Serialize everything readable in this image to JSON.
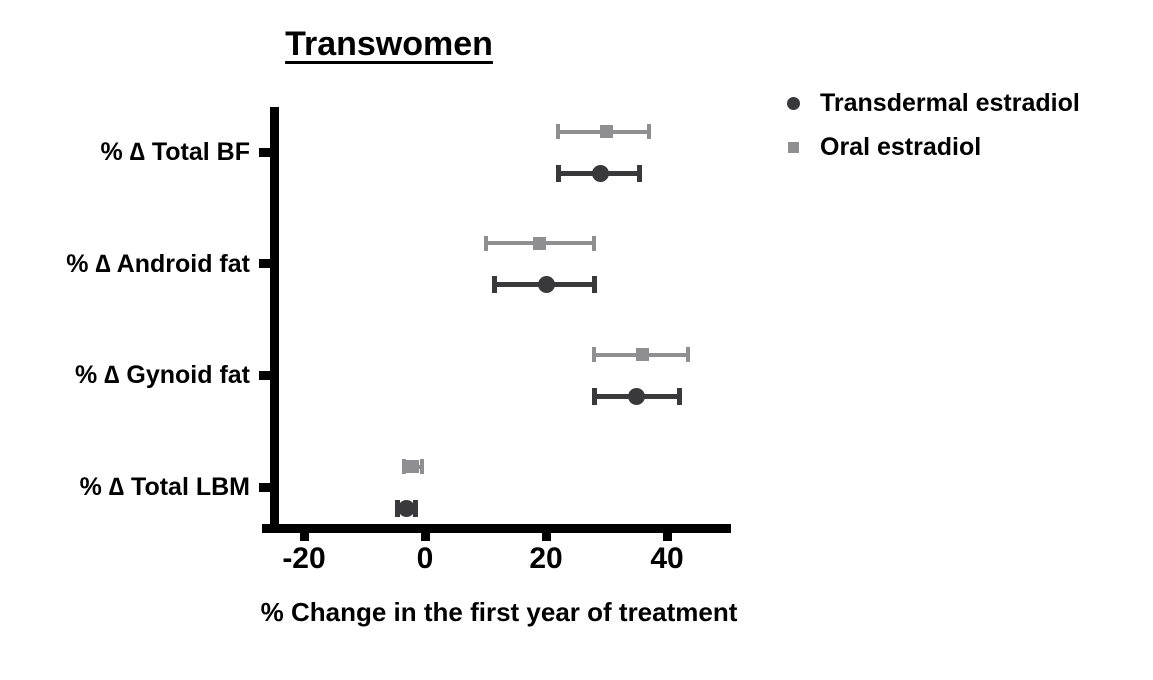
{
  "title": "Transwomen",
  "legend": {
    "items": [
      {
        "label": "Transdermal estradiol",
        "marker": "circle",
        "color": "#39393b"
      },
      {
        "label": "Oral estradiol",
        "marker": "square",
        "color": "#8f8f91"
      }
    ]
  },
  "chart_data": {
    "type": "scatter",
    "subtype": "forest-plot-dot-with-error-bars",
    "title": "Transwomen",
    "xlabel": "% Change in the first year of treatment",
    "ylabel": "",
    "categories": [
      "% ∆ Total BF",
      "% ∆ Android fat",
      "% ∆ Gynoid fat",
      "% ∆ Total LBM"
    ],
    "xticks": [
      -20,
      0,
      20,
      40
    ],
    "xlim": [
      -26.5,
      50.5
    ],
    "grid": false,
    "legend_position": "top-right",
    "axis_color": "#000000",
    "series": [
      {
        "name": "Transdermal estradiol",
        "marker": "circle",
        "color": "#39393b",
        "values": [
          {
            "mean": 29,
            "lo": 22,
            "hi": 35.5
          },
          {
            "mean": 20,
            "lo": 11.5,
            "hi": 28
          },
          {
            "mean": 35,
            "lo": 28,
            "hi": 42
          },
          {
            "mean": -3,
            "lo": -4.5,
            "hi": -1.5
          }
        ]
      },
      {
        "name": "Oral estradiol",
        "marker": "square",
        "color": "#8f8f91",
        "values": [
          {
            "mean": 30,
            "lo": 22,
            "hi": 37
          },
          {
            "mean": 19,
            "lo": 10,
            "hi": 28
          },
          {
            "mean": 36,
            "lo": 28,
            "hi": 43.5
          },
          {
            "mean": -2,
            "lo": -3.5,
            "hi": -0.5
          }
        ]
      }
    ]
  }
}
